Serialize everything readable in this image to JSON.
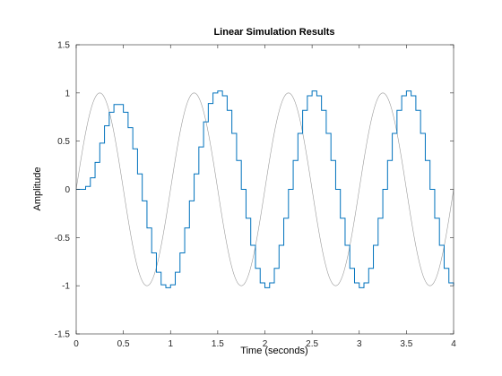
{
  "chart_data": {
    "type": "line",
    "title": "Linear Simulation Results",
    "xlabel": "Time (seconds)",
    "ylabel": "Amplitude",
    "xlim": [
      0,
      4
    ],
    "ylim": [
      -1.5,
      1.5
    ],
    "xticks": [
      "0",
      "0.5",
      "1",
      "1.5",
      "2",
      "2.5",
      "3",
      "3.5",
      "4"
    ],
    "yticks": [
      "-1.5",
      "-1",
      "-0.5",
      "0",
      "0.5",
      "1",
      "1.5"
    ],
    "grid": false,
    "series": [
      {
        "role": "input",
        "style": "line",
        "color": "#999999",
        "description": "sin(2*pi*t), sampled densely over [0, 4]"
      },
      {
        "role": "output",
        "style": "stairs",
        "color": "#0072BD",
        "sample_time": 0.05,
        "x": [
          0,
          0.05,
          0.1,
          0.15,
          0.2,
          0.25,
          0.3,
          0.35,
          0.4,
          0.45,
          0.5,
          0.55,
          0.6,
          0.65,
          0.7,
          0.75,
          0.8,
          0.85,
          0.9,
          0.95,
          1.0,
          1.05,
          1.1,
          1.15,
          1.2,
          1.25,
          1.3,
          1.35,
          1.4,
          1.45,
          1.5,
          1.55,
          1.6,
          1.65,
          1.7,
          1.75,
          1.8,
          1.85,
          1.9,
          1.95,
          2.0,
          2.05,
          2.1,
          2.15,
          2.2,
          2.25,
          2.3,
          2.35,
          2.4,
          2.45,
          2.5,
          2.55,
          2.6,
          2.65,
          2.7,
          2.75,
          2.8,
          2.85,
          2.9,
          2.95,
          3.0,
          3.05,
          3.1,
          3.15,
          3.2,
          3.25,
          3.3,
          3.35,
          3.4,
          3.45,
          3.5,
          3.55,
          3.6,
          3.65,
          3.7,
          3.75,
          3.8,
          3.85,
          3.9,
          3.95,
          4.0
        ],
        "y": [
          0,
          0,
          0.03,
          0.12,
          0.28,
          0.48,
          0.66,
          0.8,
          0.88,
          0.88,
          0.8,
          0.64,
          0.42,
          0.16,
          -0.12,
          -0.4,
          -0.66,
          -0.86,
          -0.99,
          -1.02,
          -0.99,
          -0.86,
          -0.66,
          -0.4,
          -0.12,
          0.16,
          0.44,
          0.7,
          0.89,
          1.0,
          1.02,
          0.97,
          0.82,
          0.58,
          0.3,
          0.0,
          -0.3,
          -0.58,
          -0.82,
          -0.97,
          -1.02,
          -0.97,
          -0.82,
          -0.58,
          -0.3,
          0.0,
          0.3,
          0.58,
          0.82,
          0.97,
          1.02,
          0.97,
          0.82,
          0.58,
          0.3,
          0.0,
          -0.3,
          -0.58,
          -0.82,
          -0.97,
          -1.02,
          -0.97,
          -0.82,
          -0.58,
          -0.3,
          0.0,
          0.3,
          0.58,
          0.82,
          0.97,
          1.02,
          0.97,
          0.82,
          0.58,
          0.3,
          0.0,
          -0.3,
          -0.58,
          -0.82,
          -0.97,
          -1.0
        ]
      }
    ]
  }
}
